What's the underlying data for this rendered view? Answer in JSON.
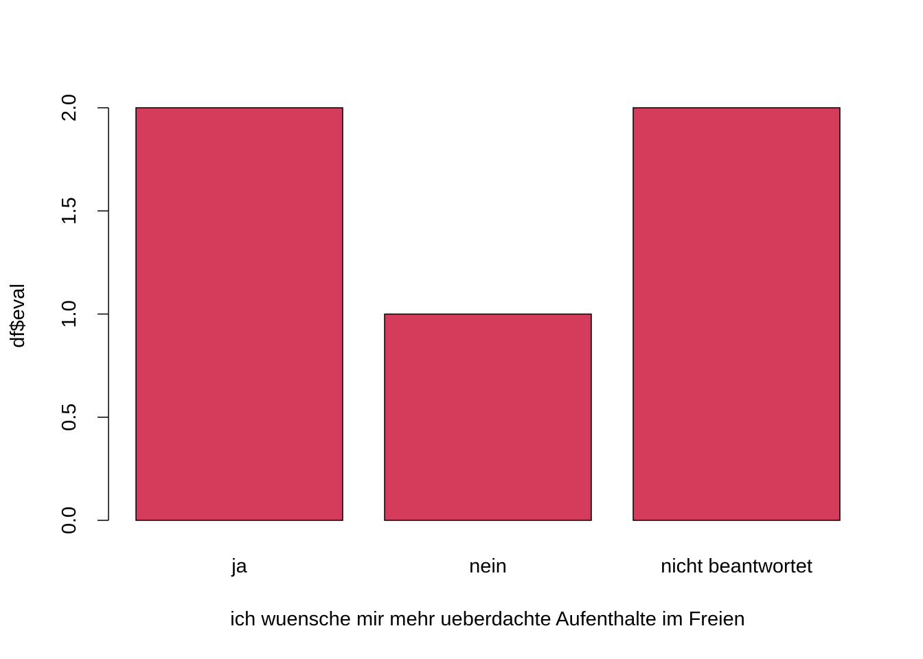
{
  "chart_data": {
    "type": "bar",
    "categories": [
      "ja",
      "nein",
      "nicht beantwortet"
    ],
    "values": [
      2,
      1,
      2
    ],
    "title": "",
    "xlabel": "ich wuensche mir mehr ueberdachte Aufenthalte im Freien",
    "ylabel": "df$eval",
    "ylim": [
      0,
      2
    ],
    "yticks": [
      0,
      0.5,
      1,
      1.5,
      2
    ],
    "ytick_labels": [
      "0.0",
      "0.5",
      "1.0",
      "1.5",
      "2.0"
    ],
    "grid": false,
    "legend": "none",
    "bar_color": "#d53b5a",
    "bar_border_color": "#000000"
  }
}
